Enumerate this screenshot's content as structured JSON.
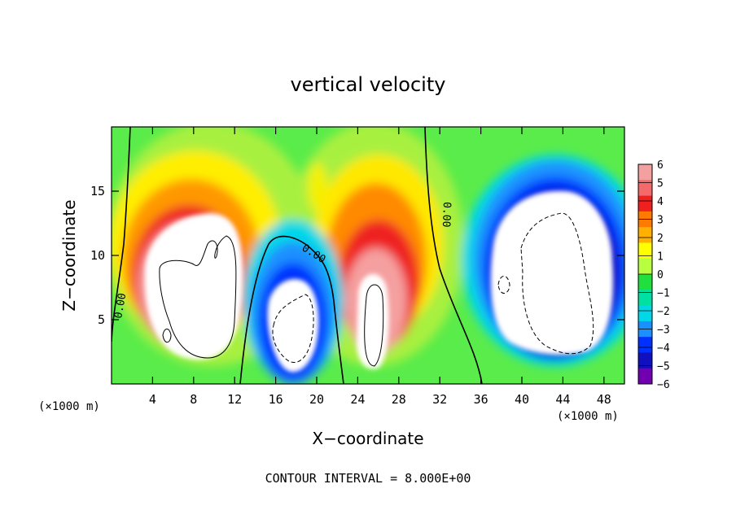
{
  "chart_data": {
    "type": "heatmap",
    "title": "vertical velocity",
    "xlabel": "X−coordinate",
    "ylabel": "Z−coordinate",
    "x_unit_left": "(×1000 m)",
    "x_unit_right": "(×1000 m)",
    "xlim": [
      0,
      50
    ],
    "ylim": [
      0,
      20
    ],
    "x_ticks": [
      4,
      8,
      12,
      16,
      20,
      24,
      28,
      32,
      36,
      40,
      44,
      48
    ],
    "x_tick_labels": [
      "4",
      "8",
      "12",
      "16",
      "20",
      "24",
      "28",
      "32",
      "36",
      "40",
      "44",
      "48"
    ],
    "y_ticks": [
      5,
      10,
      15
    ],
    "y_tick_labels": [
      "5",
      "10",
      "15"
    ],
    "colorbar": {
      "levels": [
        6,
        5,
        4,
        3,
        2,
        1,
        0,
        -1,
        -2,
        -3,
        -4,
        -5,
        -6
      ],
      "labels": [
        "6",
        "5",
        "4",
        "3",
        "2",
        "1",
        "0",
        "−1",
        "−2",
        "−3",
        "−4",
        "−5",
        "−6"
      ],
      "colors": [
        "#f2a0a0",
        "#f46a6a",
        "#ee2020",
        "#ff7a00",
        "#ffb000",
        "#ffff00",
        "#b8ff40",
        "#20e040",
        "#00e0a0",
        "#00d8e8",
        "#1a90ff",
        "#0030ff",
        "#1010c0",
        "#7000b0"
      ]
    },
    "contour_label": "0.00",
    "contour_interval_text": "CONTOUR INTERVAL = 8.000E+00",
    "features": [
      {
        "kind": "updraft",
        "x_center": 9,
        "z_center": 8,
        "x_radius": 6,
        "z_radius": 7,
        "peak": 6
      },
      {
        "kind": "downdraft",
        "x_center": 18,
        "z_center": 5,
        "x_radius": 3.5,
        "z_radius": 6,
        "peak": -6
      },
      {
        "kind": "updraft",
        "x_center": 26,
        "z_center": 7.5,
        "x_radius": 5,
        "z_radius": 8,
        "peak": 6
      },
      {
        "kind": "downdraft",
        "x_center": 43,
        "z_center": 9,
        "x_radius": 7,
        "z_radius": 8.5,
        "peak": -6
      }
    ]
  }
}
